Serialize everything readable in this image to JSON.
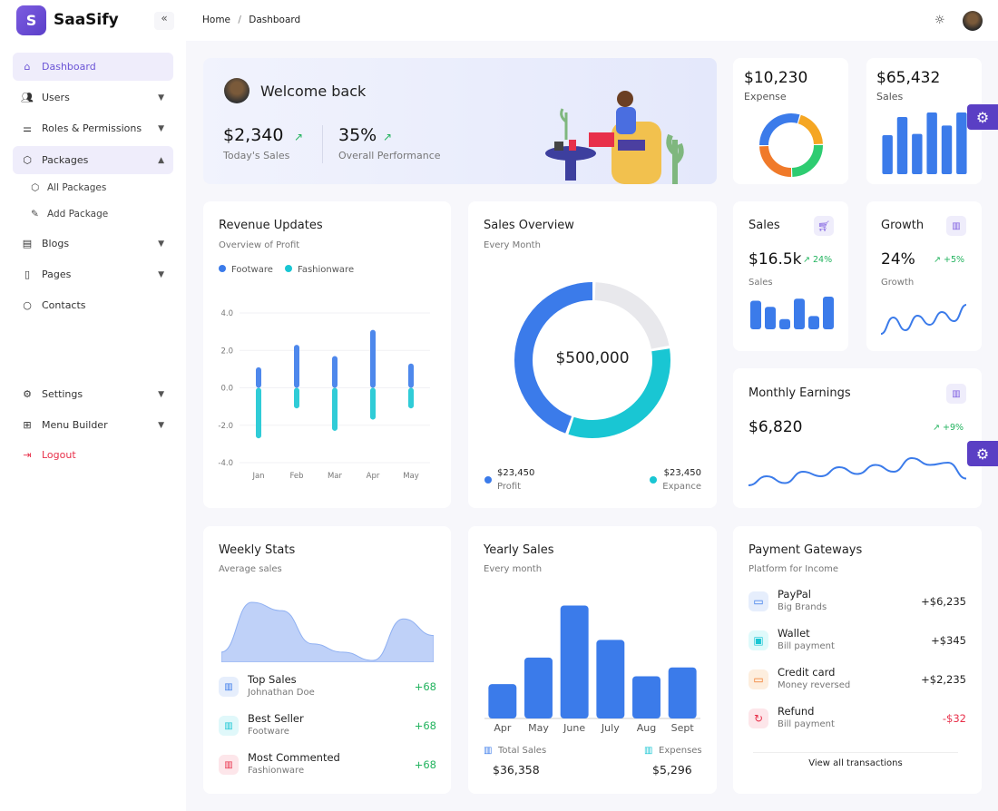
{
  "brand": {
    "name": "SaaSify",
    "letter": "S",
    "collapse": "«"
  },
  "sidebar": {
    "items": [
      {
        "label": "Dashboard",
        "icon": "home-icon"
      },
      {
        "label": "Users",
        "icon": "users-icon"
      },
      {
        "label": "Roles & Permissions",
        "icon": "sliders-icon"
      },
      {
        "label": "Packages",
        "icon": "package-icon"
      },
      {
        "label": "Blogs",
        "icon": "message-square-icon"
      },
      {
        "label": "Pages",
        "icon": "file-icon"
      },
      {
        "label": "Contacts",
        "icon": "chat-icon"
      },
      {
        "label": "Settings",
        "icon": "gear-icon"
      },
      {
        "label": "Menu Builder",
        "icon": "layout-icon"
      },
      {
        "label": "Logout",
        "icon": "logout-icon"
      }
    ],
    "sub_items": [
      {
        "label": "All Packages",
        "icon": "package-icon"
      },
      {
        "label": "Add Package",
        "icon": "pencil-icon"
      }
    ]
  },
  "breadcrumb": {
    "home": "Home",
    "sep": "/",
    "current": "Dashboard"
  },
  "colors": {
    "accent": "#6b54d6",
    "blue": "#3b7bea",
    "teal": "#19c6d3",
    "green": "#22b35e",
    "red": "#e8304a"
  },
  "welcome": {
    "title": "Welcome back",
    "sales_value": "$2,340",
    "sales_label": "Today's Sales",
    "perf_value": "35%",
    "perf_label": "Overall Performance"
  },
  "expense": {
    "value": "$10,230",
    "label": "Expense"
  },
  "sales_top": {
    "value": "$65,432",
    "label": "Sales"
  },
  "revenue": {
    "title": "Revenue Updates",
    "subtitle": "Overview of Profit"
  },
  "overview": {
    "title": "Sales Overview",
    "subtitle": "Every Month",
    "center": "$500,000",
    "profit_value": "$23,450",
    "profit_label": "Profit",
    "expense_value": "$23,450",
    "expense_label": "Expance"
  },
  "sales_small": {
    "title": "Sales",
    "value": "$16.5k",
    "change": "24%",
    "label": "Sales"
  },
  "growth": {
    "title": "Growth",
    "value": "24%",
    "change": "+5%",
    "label": "Growth"
  },
  "monthly": {
    "title": "Monthly Earnings",
    "value": "$6,820",
    "change": "+9%"
  },
  "weekly": {
    "title": "Weekly Stats",
    "subtitle": "Average sales",
    "rows": [
      {
        "name": "Top Sales",
        "sub": "Johnathan Doe",
        "value": "+68",
        "color": "#3b7bea",
        "bg": "#e6eefc"
      },
      {
        "name": "Best Seller",
        "sub": "Footware",
        "value": "+68",
        "color": "#19c6d3",
        "bg": "#e0f8fa"
      },
      {
        "name": "Most Commented",
        "sub": "Fashionware",
        "value": "+68",
        "color": "#e8304a",
        "bg": "#fde6ea"
      }
    ]
  },
  "yearly": {
    "title": "Yearly Sales",
    "subtitle": "Every month",
    "total_label": "Total Sales",
    "total_value": "$36,358",
    "exp_label": "Expenses",
    "exp_value": "$5,296"
  },
  "payments": {
    "title": "Payment Gateways",
    "subtitle": "Platform for Income",
    "link": "View all transactions",
    "rows": [
      {
        "name": "PayPal",
        "sub": "Big Brands",
        "amount": "+$6,235",
        "icon": "credit-card-icon",
        "color": "#3b7bea",
        "bg": "#e6eefc",
        "neg": false
      },
      {
        "name": "Wallet",
        "sub": "Bill payment",
        "amount": "+$345",
        "icon": "wallet-icon",
        "color": "#19c6d3",
        "bg": "#dffafb",
        "neg": false
      },
      {
        "name": "Credit card",
        "sub": "Money reversed",
        "amount": "+$2,235",
        "icon": "credit-card-icon",
        "color": "#f07a2a",
        "bg": "#fdeede",
        "neg": false
      },
      {
        "name": "Refund",
        "sub": "Bill payment",
        "amount": "-$32",
        "icon": "refresh-icon",
        "color": "#e8304a",
        "bg": "#fde6ea",
        "neg": true
      }
    ]
  },
  "chart_data": [
    {
      "id": "revenue",
      "type": "bar",
      "categories": [
        "Jan",
        "Feb",
        "Mar",
        "Apr",
        "May"
      ],
      "ylim": [
        -4,
        4
      ],
      "yticks": [
        "4.0",
        "2.0",
        "0.0",
        "-2.0",
        "-4.0"
      ],
      "legend": "top-left",
      "series": [
        {
          "name": "Footware",
          "values": [
            1.1,
            2.3,
            1.7,
            3.1,
            1.3
          ],
          "color": "#3b7bea"
        },
        {
          "name": "Fashionware",
          "values": [
            -2.7,
            -1.1,
            -2.3,
            -1.7,
            -1.1
          ],
          "color": "#19c6d3"
        }
      ]
    },
    {
      "id": "overview",
      "type": "pie",
      "values": [
        45,
        33,
        22
      ],
      "colors": [
        "#3b7bea",
        "#19c6d3",
        "#e8e8ec"
      ]
    },
    {
      "id": "expense",
      "type": "pie",
      "values": [
        30,
        20,
        25,
        25
      ],
      "colors": [
        "#3b7bea",
        "#f5a623",
        "#2ecc71",
        "#f07a2a"
      ]
    },
    {
      "id": "sales_top",
      "type": "bar",
      "values": [
        60,
        88,
        62,
        95,
        75,
        95
      ],
      "color": "#3b7bea"
    },
    {
      "id": "sales_small",
      "type": "bar",
      "values": [
        28,
        22,
        10,
        30,
        13,
        32
      ],
      "color": "#3b7bea"
    },
    {
      "id": "growth",
      "type": "line",
      "values": [
        0,
        9,
        2,
        10,
        5,
        12,
        7,
        16
      ],
      "color": "#3b7bea"
    },
    {
      "id": "monthly",
      "type": "line",
      "values": [
        2,
        6,
        3,
        8,
        6,
        10,
        7,
        11,
        8,
        14,
        11,
        12,
        5
      ],
      "color": "#3b7bea"
    },
    {
      "id": "weekly",
      "type": "area",
      "values": [
        4,
        10,
        9,
        5,
        4,
        3,
        8,
        6
      ],
      "color": "#a9c1f5"
    },
    {
      "id": "yearly",
      "type": "bar",
      "categories": [
        "Apr",
        "May",
        "June",
        "July",
        "Aug",
        "Sept"
      ],
      "values": [
        35,
        62,
        115,
        80,
        43,
        52
      ],
      "color": "#3b7bea"
    }
  ]
}
